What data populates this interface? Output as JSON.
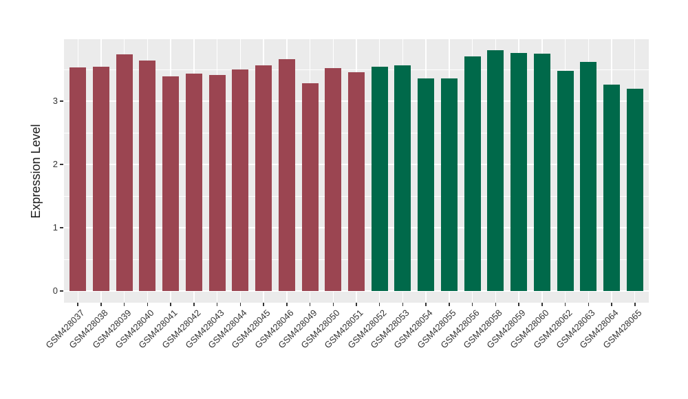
{
  "chart_data": {
    "type": "bar",
    "title": "",
    "xlabel": "",
    "ylabel": "Expression Level",
    "categories": [
      "GSM428037",
      "GSM428038",
      "GSM428039",
      "GSM428040",
      "GSM428041",
      "GSM428042",
      "GSM428043",
      "GSM428044",
      "GSM428045",
      "GSM428046",
      "GSM428049",
      "GSM428050",
      "GSM428051",
      "GSM428052",
      "GSM428053",
      "GSM428054",
      "GSM428055",
      "GSM428056",
      "GSM428058",
      "GSM428059",
      "GSM428060",
      "GSM428062",
      "GSM428063",
      "GSM428064",
      "GSM428065"
    ],
    "values": [
      3.53,
      3.54,
      3.74,
      3.64,
      3.39,
      3.43,
      3.41,
      3.5,
      3.57,
      3.66,
      3.28,
      3.52,
      3.46,
      3.54,
      3.56,
      3.36,
      3.36,
      3.71,
      3.8,
      3.76,
      3.75,
      3.48,
      3.62,
      3.26,
      3.2
    ],
    "groups": [
      "A",
      "A",
      "A",
      "A",
      "A",
      "A",
      "A",
      "A",
      "A",
      "A",
      "A",
      "A",
      "A",
      "B",
      "B",
      "B",
      "B",
      "B",
      "B",
      "B",
      "B",
      "B",
      "B",
      "B",
      "B"
    ],
    "group_colors": {
      "A": "#9B4551",
      "B": "#00694A"
    },
    "yticks": [
      "0",
      "1",
      "2",
      "3"
    ],
    "ytick_values": [
      0,
      1,
      2,
      3
    ],
    "minor_ytick_values": [
      0.5,
      1.5,
      2.5,
      3.5
    ],
    "ylim": [
      -0.19,
      3.98
    ],
    "x_tick_angle": 45,
    "bar_width_fraction": 0.72,
    "legend": "none",
    "grid": "white major+minor horizontal, white vertical at category centers",
    "panel_background": "#EBEBEB",
    "figure_background": "#FFFFFF",
    "axis_text_color": "#333333",
    "axis_title_color": "#1a1a1a"
  }
}
